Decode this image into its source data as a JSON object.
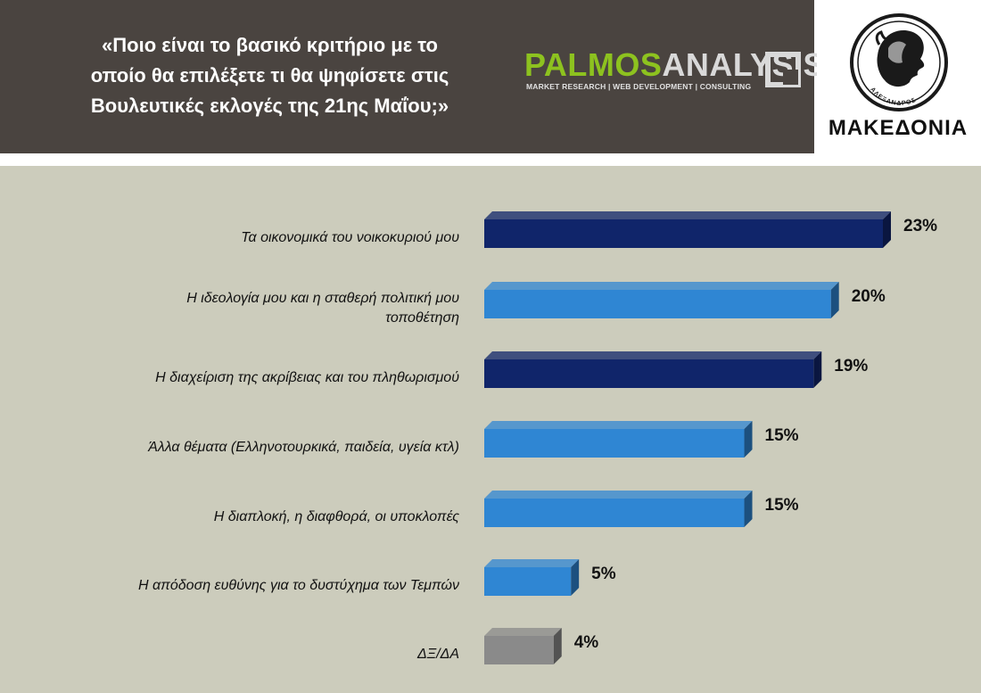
{
  "header": {
    "question_lines": [
      "«Ποιο είναι το βασικό κριτήριο με το",
      "οποίο θα επιλέξετε τι θα ψηφίσετε στις",
      "Βουλευτικές εκλογές της 21ης Μαΐου;»"
    ],
    "brand_left": "PALMOS",
    "brand_right": "ANALYSIS",
    "brand_tagline": "MARKET RESEARCH | WEB DEVELOPMENT | CONSULTING",
    "logo_name": "ΜΑΚΕΔΟΝΙΑ",
    "coin_text": "ΑΛΕΞΑΝΔΡΟΣ"
  },
  "colors": {
    "header_bg": "#4a4440",
    "chart_bg": "#ccccbc",
    "dark_navy": "#10256a",
    "medium_blue": "#2f86d3",
    "gray": "#8a8a8a",
    "brand_green": "#8dc21f"
  },
  "chart_data": {
    "type": "bar",
    "orientation": "horizontal",
    "categories": [
      [
        "Τα οικονομικά του νοικοκυριού μου"
      ],
      [
        "Η ιδεολογία μου και η σταθερή πολιτική μου",
        "τοποθέτηση"
      ],
      [
        "Η διαχείριση της ακρίβειας και του πληθωρισμού"
      ],
      [
        "Άλλα θέματα (Ελληνοτουρκικά, παιδεία, υγεία κτλ)"
      ],
      [
        "Η διαπλοκή, η διαφθορά, οι υποκλοπές"
      ],
      [
        "Η απόδοση ευθύνης για το δυστύχημα των Τεμπών"
      ],
      [
        "ΔΞ/ΔΑ"
      ]
    ],
    "values": [
      23,
      20,
      19,
      15,
      15,
      5,
      4
    ],
    "value_labels": [
      "23%",
      "20%",
      "19%",
      "15%",
      "15%",
      "5%",
      "4%"
    ],
    "bar_colors": [
      "#10256a",
      "#2f86d3",
      "#10256a",
      "#2f86d3",
      "#2f86d3",
      "#2f86d3",
      "#8a8a8a"
    ],
    "xlim": [
      0,
      23
    ],
    "unit": "%",
    "title": "",
    "xlabel": "",
    "ylabel": "",
    "grid": false,
    "legend": "none"
  }
}
